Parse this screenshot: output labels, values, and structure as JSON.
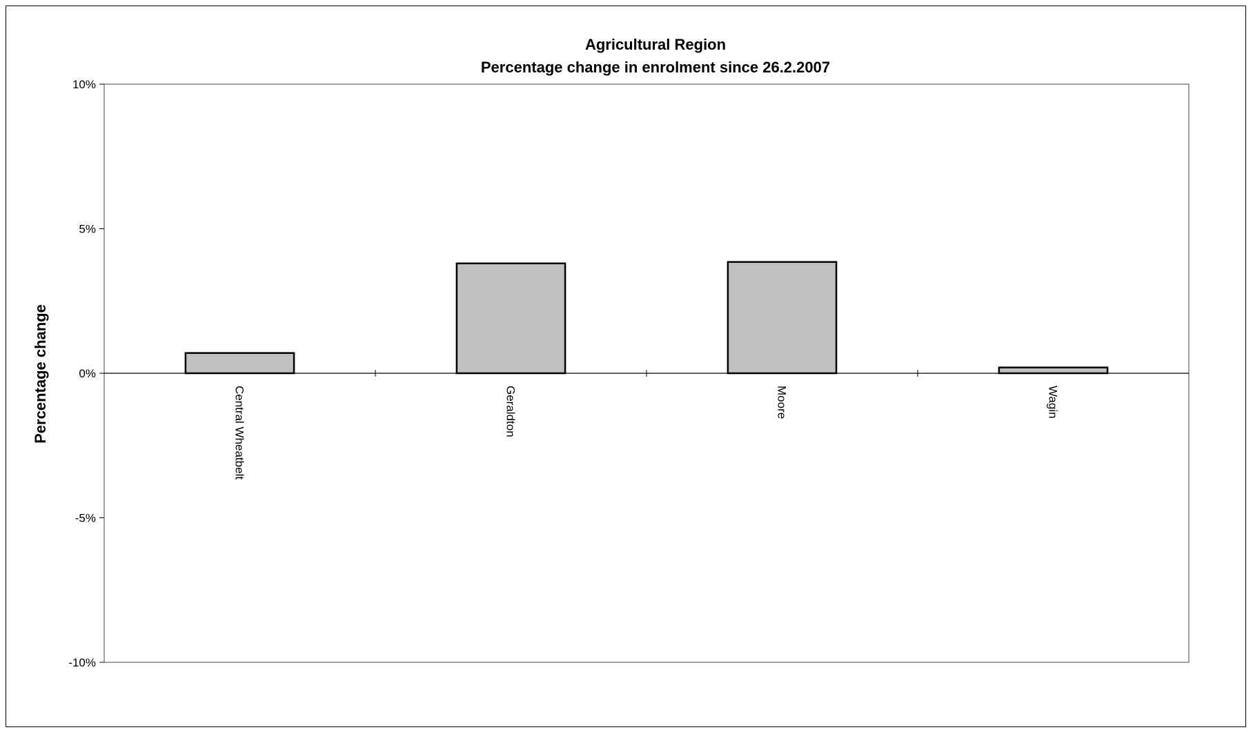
{
  "chart_data": {
    "type": "bar",
    "title_lines": [
      "Agricultural Region",
      "Percentage change in enrolment since 26.2.2007"
    ],
    "xlabel": "",
    "ylabel": "Percentage change",
    "categories": [
      "Central Wheatbelt",
      "Geraldton",
      "Moore",
      "Wagin"
    ],
    "values": [
      0.7,
      3.8,
      3.85,
      0.2
    ],
    "ylim": [
      -10,
      10
    ],
    "yticks": [
      10,
      5,
      0,
      -5,
      -10
    ],
    "ytick_labels": [
      "10%",
      "5%",
      "0%",
      "-5%",
      "-10%"
    ],
    "grid": false,
    "legend": "none",
    "colors": {
      "bar_fill": "#c0c0c0",
      "bar_stroke": "#000000",
      "plot_border": "#808080",
      "zero_line": "#000000"
    }
  }
}
